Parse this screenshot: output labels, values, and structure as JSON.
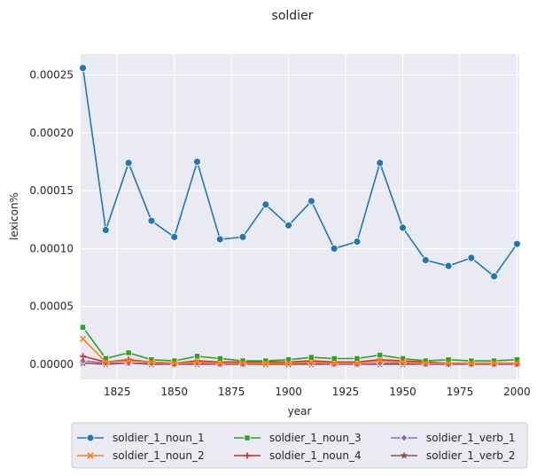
{
  "chart_data": {
    "type": "line",
    "title": "soldier",
    "xlabel": "year",
    "ylabel": "lexicon%",
    "xlim": [
      1809,
      2001
    ],
    "ylim": [
      -1.3e-05,
      0.000268
    ],
    "x_ticks": [
      1825,
      1850,
      1875,
      1900,
      1925,
      1950,
      1975,
      2000
    ],
    "y_ticks": [
      0,
      5e-05,
      0.0001,
      0.00015,
      0.0002,
      0.00025
    ],
    "y_tick_labels": [
      "0.00000",
      "0.00005",
      "0.00010",
      "0.00015",
      "0.00020",
      "0.00025"
    ],
    "grid": true,
    "background": "#eaeaf2",
    "legend_position": "bottom",
    "x": [
      1810,
      1820,
      1830,
      1840,
      1850,
      1860,
      1870,
      1880,
      1890,
      1900,
      1910,
      1920,
      1930,
      1940,
      1950,
      1960,
      1970,
      1980,
      1990,
      2000
    ],
    "series": [
      {
        "name": "soldier_1_noun_1",
        "color": "#1f77b4",
        "marker": "circle",
        "values": [
          0.000256,
          0.000116,
          0.000174,
          0.000124,
          0.00011,
          0.000175,
          0.000108,
          0.00011,
          0.000138,
          0.00012,
          0.000141,
          0.0001,
          0.000106,
          0.000174,
          0.000118,
          9e-05,
          8.5e-05,
          9.2e-05,
          7.6e-05,
          0.000104
        ]
      },
      {
        "name": "soldier_1_noun_2",
        "color": "#ff7f0e",
        "marker": "x",
        "values": [
          2.2e-05,
          2e-06,
          3e-06,
          2e-06,
          1e-06,
          2e-06,
          1e-06,
          1e-06,
          1e-06,
          1e-06,
          2e-06,
          1e-06,
          1e-06,
          3e-06,
          2e-06,
          1e-06,
          1e-06,
          1e-06,
          1e-06,
          1e-06
        ]
      },
      {
        "name": "soldier_1_noun_3",
        "color": "#2ca02c",
        "marker": "square",
        "values": [
          3.2e-05,
          5e-06,
          1e-05,
          4e-06,
          3e-06,
          7e-06,
          5e-06,
          3e-06,
          3e-06,
          4e-06,
          6e-06,
          5e-06,
          5e-06,
          8e-06,
          5e-06,
          3e-06,
          4e-06,
          3e-06,
          3e-06,
          4e-06
        ]
      },
      {
        "name": "soldier_1_noun_4",
        "color": "#d62728",
        "marker": "plus",
        "values": [
          7e-06,
          2e-06,
          4e-06,
          2e-06,
          1e-06,
          3e-06,
          2e-06,
          2e-06,
          2e-06,
          2e-06,
          3e-06,
          2e-06,
          2e-06,
          4e-06,
          3e-06,
          2e-06,
          1e-06,
          1e-06,
          1e-06,
          1e-06
        ]
      },
      {
        "name": "soldier_1_verb_1",
        "color": "#9467bd",
        "marker": "diamond",
        "values": [
          3e-06,
          1e-06,
          1e-06,
          1e-06,
          0.0,
          1e-06,
          0.0,
          0.0,
          1e-06,
          1e-06,
          1e-06,
          0.0,
          0.0,
          1e-06,
          1e-06,
          0.0,
          0.0,
          0.0,
          0.0,
          0.0
        ]
      },
      {
        "name": "soldier_1_verb_2",
        "color": "#8c564b",
        "marker": "star",
        "values": [
          1e-06,
          0.0,
          1e-06,
          0.0,
          0.0,
          0.0,
          0.0,
          0.0,
          0.0,
          0.0,
          0.0,
          0.0,
          0.0,
          0.0,
          0.0,
          0.0,
          0.0,
          0.0,
          0.0,
          0.0
        ]
      }
    ]
  }
}
